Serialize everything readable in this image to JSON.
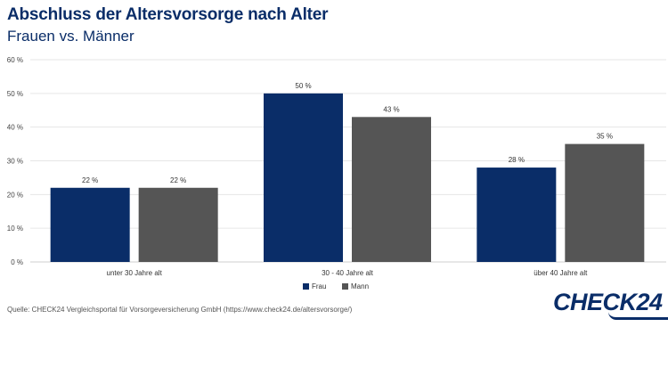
{
  "header": {
    "title": "Abschluss der Altersvorsorge nach Alter",
    "subtitle": "Frauen vs. Männer"
  },
  "chart_data": {
    "type": "bar",
    "categories": [
      "unter 30 Jahre alt",
      "30 - 40 Jahre alt",
      "über 40 Jahre alt"
    ],
    "series": [
      {
        "name": "Frau",
        "values": [
          22,
          50,
          28
        ],
        "color": "#0a2d68"
      },
      {
        "name": "Mann",
        "values": [
          22,
          43,
          35
        ],
        "color": "#555555"
      }
    ],
    "ylim": [
      0,
      60
    ],
    "yticks": [
      0,
      10,
      20,
      30,
      40,
      50,
      60
    ],
    "ytick_labels": [
      "0 %",
      "10 %",
      "20 %",
      "30 %",
      "40 %",
      "50 %",
      "60 %"
    ],
    "data_labels": [
      [
        "22 %",
        "50 %",
        "28 %"
      ],
      [
        "22 %",
        "43 %",
        "35 %"
      ]
    ],
    "grid": true,
    "legend": "bottom-center"
  },
  "footer": {
    "source": "Quelle: CHECK24 Vergleichsportal für Vorsorgeversicherung GmbH (https://www.check24.de/altersvorsorge/)",
    "logo_text": "CHECK24"
  }
}
